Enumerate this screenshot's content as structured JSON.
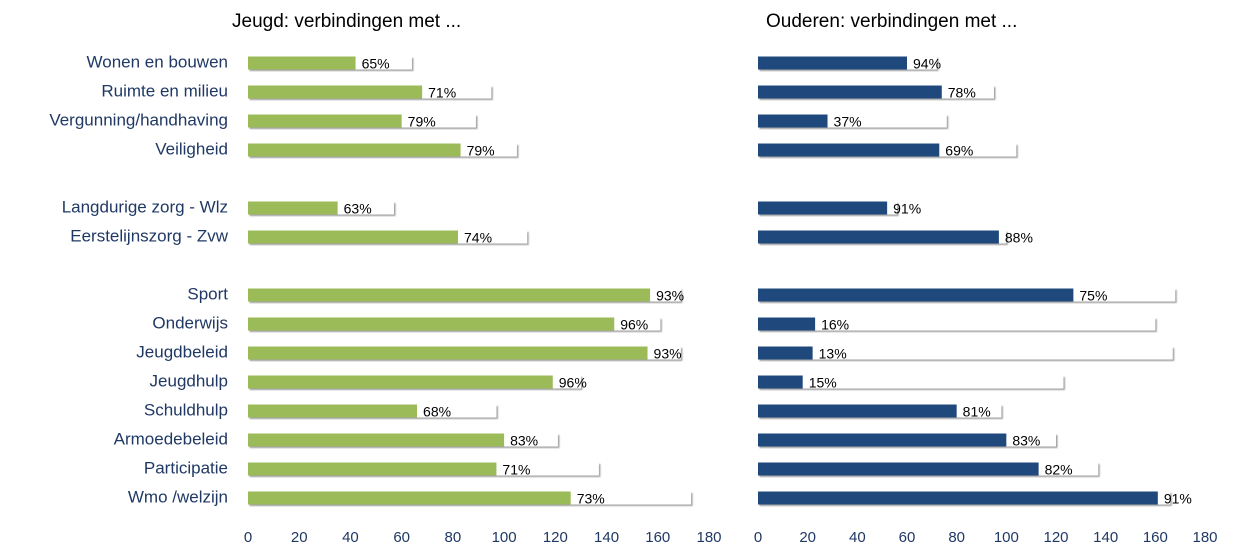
{
  "chart_data": [
    {
      "type": "bar",
      "orientation": "horizontal",
      "title": "Jeugd: verbindingen met ...",
      "categories": [
        "Wonen en bouwen",
        "Ruimte en milieu",
        "Vergunning/handhaving",
        "Veiligheid",
        null,
        "Langdurige zorg - Wlz",
        "Eerstelijnszorg - Zvw",
        null,
        "Sport",
        "Onderwijs",
        "Jeugdbeleid",
        "Jeugdhulp",
        "Schuldhulp",
        "Armoedebeleid",
        "Participatie",
        "Wmo /welzijn"
      ],
      "series": [
        {
          "color": "#9bbb59",
          "values": [
            42,
            68,
            60,
            83,
            null,
            35,
            82,
            null,
            157,
            143,
            156,
            119,
            66,
            100,
            97,
            126
          ]
        },
        {
          "color": "#ffffff",
          "values": [
            64,
            95,
            89,
            105,
            null,
            57,
            109,
            null,
            169,
            161,
            169,
            130,
            97,
            121,
            137,
            173
          ]
        }
      ],
      "value_labels": [
        "65%",
        "71%",
        "79%",
        "79%",
        null,
        "63%",
        "74%",
        null,
        "93%",
        "96%",
        "93%",
        "96%",
        "68%",
        "83%",
        "71%",
        "73%"
      ],
      "xlim": [
        0,
        180
      ],
      "xticks": [
        0,
        20,
        40,
        60,
        80,
        100,
        120,
        140,
        160,
        180
      ]
    },
    {
      "type": "bar",
      "orientation": "horizontal",
      "title": "Ouderen: verbindingen met  ...",
      "series": [
        {
          "color": "#1f497d",
          "values": [
            60,
            74,
            28,
            73,
            null,
            52,
            97,
            null,
            127,
            23,
            22,
            18,
            80,
            100,
            113,
            161
          ]
        },
        {
          "color": "#ffffff",
          "values": [
            72,
            95,
            76,
            104,
            null,
            56,
            100,
            null,
            168,
            160,
            167,
            123,
            98,
            120,
            137,
            166
          ]
        }
      ],
      "value_labels": [
        "94%",
        "78%",
        "37%",
        "69%",
        null,
        "91%",
        "88%",
        null,
        "75%",
        "16%",
        "13%",
        "15%",
        "81%",
        "83%",
        "82%",
        "91%"
      ],
      "xlim": [
        0,
        180
      ],
      "xticks": [
        0,
        20,
        40,
        60,
        80,
        100,
        120,
        140,
        160,
        180
      ]
    }
  ]
}
